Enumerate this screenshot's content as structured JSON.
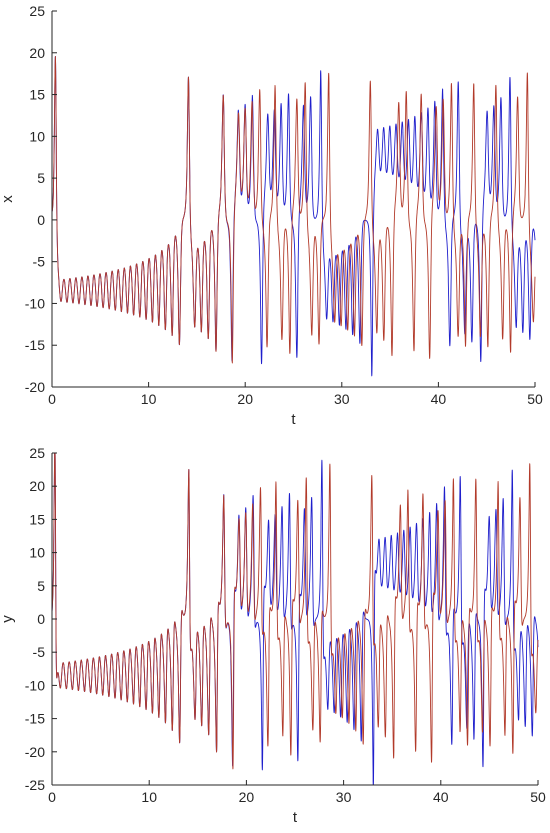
{
  "chart_data": [
    {
      "type": "line",
      "title": "",
      "xlabel": "t",
      "ylabel": "x",
      "xlim": [
        0,
        50
      ],
      "ylim": [
        -20,
        25
      ],
      "xticks": [
        "0",
        "10",
        "20",
        "30",
        "40",
        "50"
      ],
      "yticks": [
        "-20",
        "-15",
        "-10",
        "-5",
        "0",
        "5",
        "10",
        "15",
        "20",
        "25"
      ],
      "grid": false,
      "series": [
        {
          "color": "#1f1fcc"
        },
        {
          "color": "#b23a2a"
        }
      ]
    },
    {
      "type": "line",
      "title": "",
      "xlabel": "t",
      "ylabel": "y",
      "xlim": [
        0,
        50
      ],
      "ylim": [
        -25,
        25
      ],
      "xticks": [
        "0",
        "10",
        "20",
        "30",
        "40",
        "50"
      ],
      "yticks": [
        "-25",
        "-20",
        "-15",
        "-10",
        "-5",
        "0",
        "5",
        "10",
        "15",
        "20",
        "25"
      ],
      "grid": false,
      "series": [
        {
          "color": "#1f1fcc"
        },
        {
          "color": "#b23a2a"
        }
      ]
    }
  ]
}
